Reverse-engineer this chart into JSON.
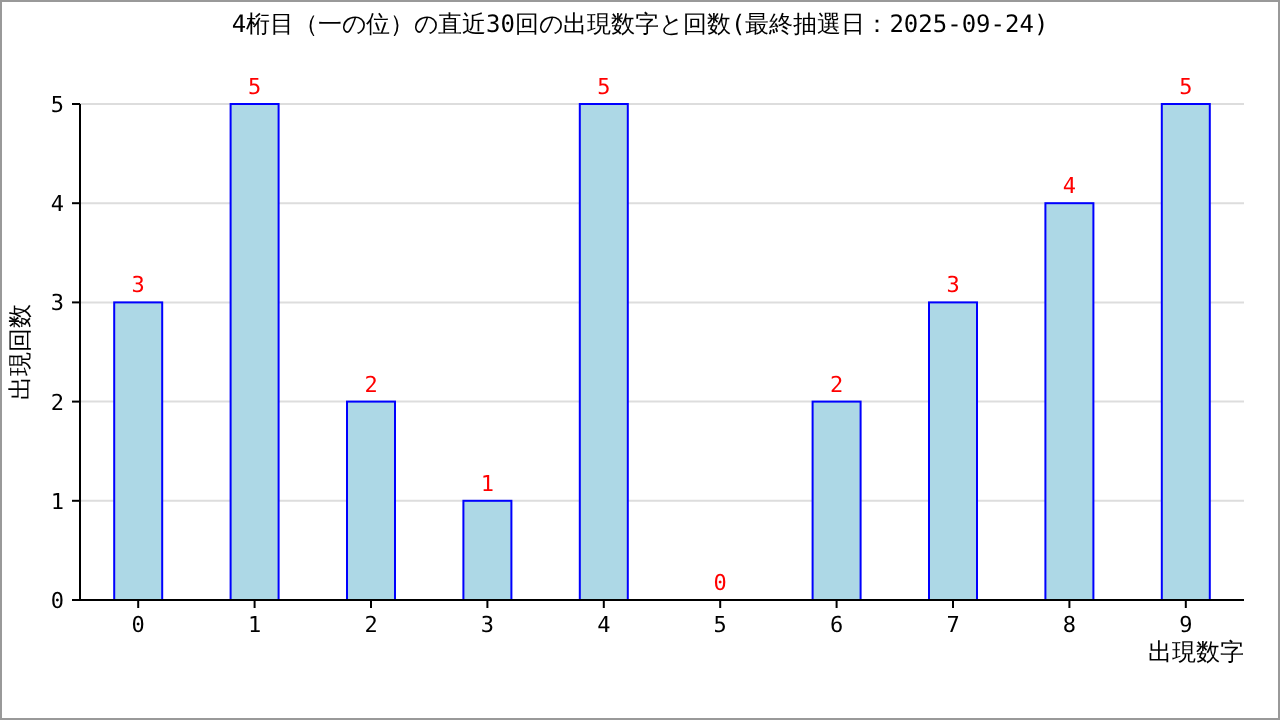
{
  "chart_data": {
    "type": "bar",
    "title": "4桁目（一の位）の直近30回の出現数字と回数(最終抽選日：2025-09-24)",
    "xlabel": "出現数字",
    "ylabel": "出現回数",
    "categories": [
      "0",
      "1",
      "2",
      "3",
      "4",
      "5",
      "6",
      "7",
      "8",
      "9"
    ],
    "values": [
      3,
      5,
      2,
      1,
      5,
      0,
      2,
      3,
      4,
      5
    ],
    "color": "#add8e6",
    "ylim": [
      0,
      5
    ],
    "yticks": [
      0,
      1,
      2,
      3,
      4,
      5
    ],
    "grid": "y",
    "data_labels": true
  }
}
